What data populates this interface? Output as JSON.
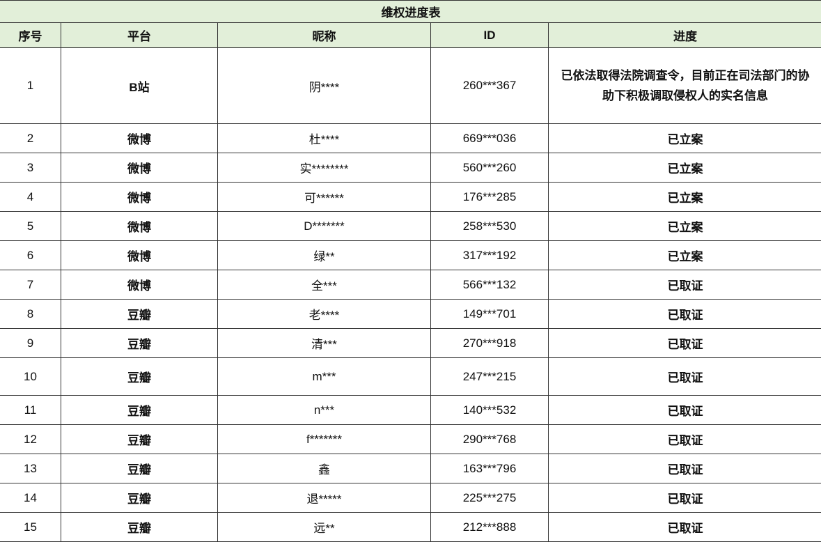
{
  "title": "维权进度表",
  "headers": [
    "序号",
    "平台",
    "昵称",
    "ID",
    "进度"
  ],
  "header_bg": "#e2efd9",
  "rows": [
    {
      "no": "1",
      "platform": "B站",
      "nickname": "阴****",
      "id": "260***367",
      "progress": "已依法取得法院调查令，目前正在司法部门的协助下积极调取侵权人的实名信息"
    },
    {
      "no": "2",
      "platform": "微博",
      "nickname": "杜****",
      "id": "669***036",
      "progress": "已立案"
    },
    {
      "no": "3",
      "platform": "微博",
      "nickname": "实********",
      "id": "560***260",
      "progress": "已立案"
    },
    {
      "no": "4",
      "platform": "微博",
      "nickname": "可******",
      "id": "176***285",
      "progress": "已立案"
    },
    {
      "no": "5",
      "platform": "微博",
      "nickname": "D*******",
      "id": "258***530",
      "progress": "已立案"
    },
    {
      "no": "6",
      "platform": "微博",
      "nickname": "绿**",
      "id": "317***192",
      "progress": "已立案"
    },
    {
      "no": "7",
      "platform": "微博",
      "nickname": "全***",
      "id": "566***132",
      "progress": "已取证"
    },
    {
      "no": "8",
      "platform": "豆瓣",
      "nickname": "老****",
      "id": "149***701",
      "progress": "已取证"
    },
    {
      "no": "9",
      "platform": "豆瓣",
      "nickname": "清***",
      "id": "270***918",
      "progress": "已取证"
    },
    {
      "no": "10",
      "platform": "豆瓣",
      "nickname": "m***",
      "id": "247***215",
      "progress": "已取证"
    },
    {
      "no": "11",
      "platform": "豆瓣",
      "nickname": "n***",
      "id": "140***532",
      "progress": "已取证"
    },
    {
      "no": "12",
      "platform": "豆瓣",
      "nickname": "f*******",
      "id": "290***768",
      "progress": "已取证"
    },
    {
      "no": "13",
      "platform": "豆瓣",
      "nickname": "鑫",
      "id": "163***796",
      "progress": "已取证"
    },
    {
      "no": "14",
      "platform": "豆瓣",
      "nickname": "退*****",
      "id": "225***275",
      "progress": "已取证"
    },
    {
      "no": "15",
      "platform": "豆瓣",
      "nickname": "远**",
      "id": "212***888",
      "progress": "已取证"
    }
  ]
}
